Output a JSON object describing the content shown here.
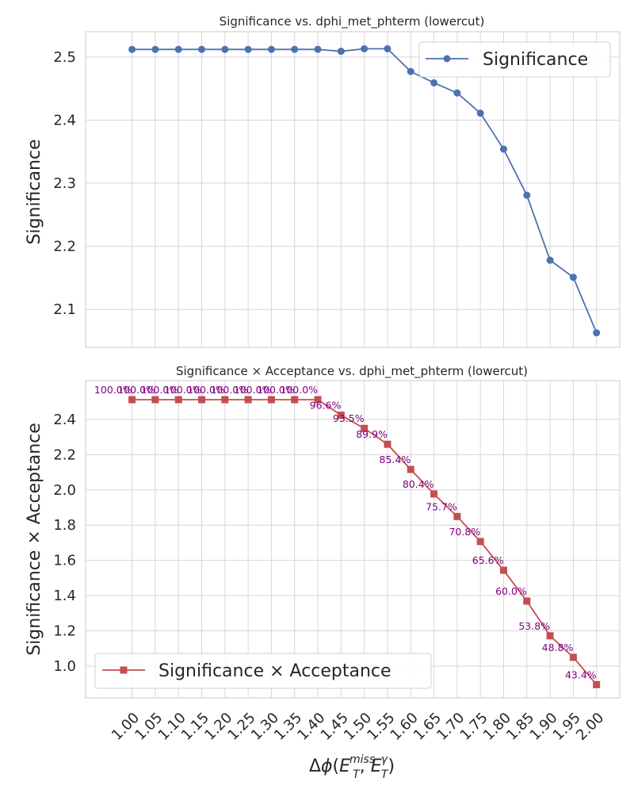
{
  "chart_data": [
    {
      "type": "line",
      "title": "Significance vs. dphi_met_phterm (lowercut)",
      "xlabel": "",
      "ylabel": "Significance",
      "x": [
        1.0,
        1.05,
        1.1,
        1.15,
        1.2,
        1.25,
        1.3,
        1.35,
        1.4,
        1.45,
        1.5,
        1.55,
        1.6,
        1.65,
        1.7,
        1.75,
        1.8,
        1.85,
        1.9,
        1.95,
        2.0
      ],
      "xlim": [
        0.9,
        2.05
      ],
      "ylim": [
        2.04,
        2.54
      ],
      "yticks": [
        2.1,
        2.2,
        2.3,
        2.4,
        2.5
      ],
      "grid": true,
      "legend_position": "upper-right",
      "series": [
        {
          "name": "Significance",
          "color": "#4c72b0",
          "marker": "circle",
          "values": [
            2.512,
            2.512,
            2.512,
            2.512,
            2.512,
            2.512,
            2.512,
            2.512,
            2.512,
            2.509,
            2.513,
            2.513,
            2.477,
            2.459,
            2.443,
            2.411,
            2.354,
            2.281,
            2.178,
            2.151,
            2.063
          ]
        }
      ]
    },
    {
      "type": "line",
      "title": "Significance × Acceptance vs. dphi_met_phterm (lowercut)",
      "xlabel": "Δφ(E_T^miss, E_T^γ)",
      "ylabel": "Significance × Acceptance",
      "x": [
        1.0,
        1.05,
        1.1,
        1.15,
        1.2,
        1.25,
        1.3,
        1.35,
        1.4,
        1.45,
        1.5,
        1.55,
        1.6,
        1.65,
        1.7,
        1.75,
        1.8,
        1.85,
        1.9,
        1.95,
        2.0
      ],
      "x_tick_labels": [
        "1.00",
        "1.05",
        "1.10",
        "1.15",
        "1.20",
        "1.25",
        "1.30",
        "1.35",
        "1.40",
        "1.45",
        "1.50",
        "1.55",
        "1.60",
        "1.65",
        "1.70",
        "1.75",
        "1.80",
        "1.85",
        "1.90",
        "1.95",
        "2.00"
      ],
      "xlim": [
        0.9,
        2.05
      ],
      "ylim": [
        0.82,
        2.62
      ],
      "yticks": [
        1.0,
        1.2,
        1.4,
        1.6,
        1.8,
        2.0,
        2.2,
        2.4
      ],
      "grid": true,
      "legend_position": "lower-left",
      "series": [
        {
          "name": "Significance × Acceptance",
          "color": "#c44e52",
          "marker": "square",
          "values": [
            2.512,
            2.512,
            2.512,
            2.512,
            2.512,
            2.512,
            2.512,
            2.512,
            2.512,
            2.424,
            2.349,
            2.259,
            2.116,
            1.977,
            1.849,
            1.707,
            1.544,
            1.369,
            1.172,
            1.05,
            0.895
          ]
        }
      ],
      "point_labels": [
        "100.0%",
        "100.0%",
        "100.0%",
        "100.0%",
        "100.0%",
        "100.0%",
        "100.0%",
        "100.0%",
        "100.0%",
        "96.6%",
        "93.5%",
        "89.9%",
        "85.4%",
        "80.4%",
        "75.7%",
        "70.8%",
        "65.6%",
        "60.0%",
        "53.8%",
        "48.8%",
        "43.4%"
      ],
      "point_label_color": "#800080"
    }
  ]
}
